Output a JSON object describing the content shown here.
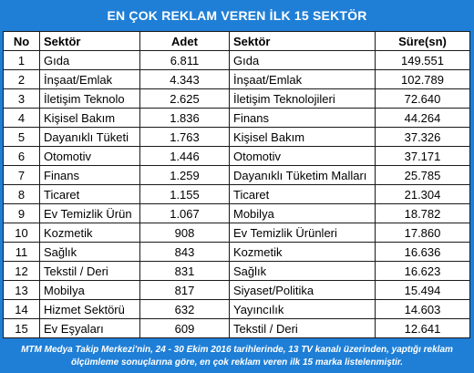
{
  "title": "EN ÇOK REKLAM VEREN İLK 15 SEKTÖR",
  "headers": {
    "no": "No",
    "sektor": "Sektör",
    "adet": "Adet",
    "sektor2": "Sektör",
    "sure": "Süre(sn)"
  },
  "rows": [
    {
      "no": "1",
      "sektor": "Gıda",
      "adet": "6.811",
      "sektor2": "Gıda",
      "sure": "149.551"
    },
    {
      "no": "2",
      "sektor": "İnşaat/Emlak",
      "adet": "4.343",
      "sektor2": "İnşaat/Emlak",
      "sure": "102.789"
    },
    {
      "no": "3",
      "sektor": "İletişim Teknolo",
      "adet": "2.625",
      "sektor2": "İletişim Teknolojileri",
      "sure": "72.640"
    },
    {
      "no": "4",
      "sektor": "Kişisel Bakım",
      "adet": "1.836",
      "sektor2": "Finans",
      "sure": "44.264"
    },
    {
      "no": "5",
      "sektor": "Dayanıklı Tüketi",
      "adet": "1.763",
      "sektor2": "Kişisel Bakım",
      "sure": "37.326"
    },
    {
      "no": "6",
      "sektor": "Otomotiv",
      "adet": "1.446",
      "sektor2": "Otomotiv",
      "sure": "37.171"
    },
    {
      "no": "7",
      "sektor": "Finans",
      "adet": "1.259",
      "sektor2": "Dayanıklı Tüketim Malları",
      "sure": "25.785"
    },
    {
      "no": "8",
      "sektor": "Ticaret",
      "adet": "1.155",
      "sektor2": "Ticaret",
      "sure": "21.304"
    },
    {
      "no": "9",
      "sektor": "Ev Temizlik Ürün",
      "adet": "1.067",
      "sektor2": "Mobilya",
      "sure": "18.782"
    },
    {
      "no": "10",
      "sektor": "Kozmetik",
      "adet": "908",
      "sektor2": "Ev Temizlik Ürünleri",
      "sure": "17.860"
    },
    {
      "no": "11",
      "sektor": "Sağlık",
      "adet": "843",
      "sektor2": "Kozmetik",
      "sure": "16.636"
    },
    {
      "no": "12",
      "sektor": "Tekstil / Deri",
      "adet": "831",
      "sektor2": "Sağlık",
      "sure": "16.623"
    },
    {
      "no": "13",
      "sektor": "Mobilya",
      "adet": "817",
      "sektor2": "Siyaset/Politika",
      "sure": "15.494"
    },
    {
      "no": "14",
      "sektor": "Hizmet Sektörü",
      "adet": "632",
      "sektor2": "Yayıncılık",
      "sure": "14.603"
    },
    {
      "no": "15",
      "sektor": "Ev Eşyaları",
      "adet": "609",
      "sektor2": "Tekstil / Deri",
      "sure": "12.641"
    }
  ],
  "footer": {
    "line1": "MTM Medya Takip Merkezi'nin, 24 - 30 Ekim  2016 tarihlerinde, 13 TV kanalı üzerinden,  yaptığı reklam",
    "line2": "ölçümleme sonuçlarına göre, en çok reklam veren ilk 15 marka  listelenmiştir."
  },
  "colors": {
    "banner": "#1f7fd6",
    "text_on_banner": "#ffffff",
    "cell_border": "#1a1a1a"
  }
}
